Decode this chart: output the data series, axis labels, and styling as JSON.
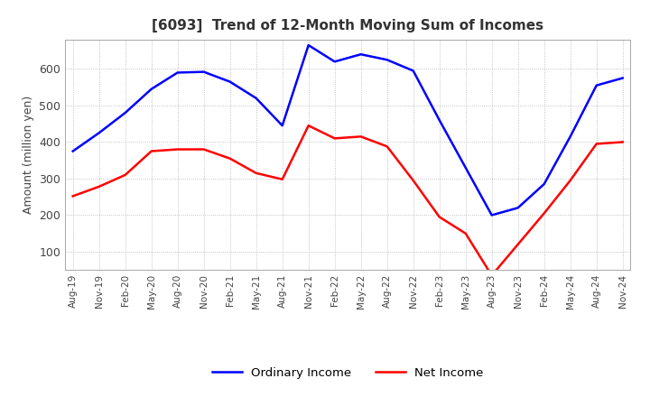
{
  "title": "[6093]  Trend of 12-Month Moving Sum of Incomes",
  "ylabel": "Amount (million yen)",
  "ylim": [
    50,
    680
  ],
  "yticks": [
    100,
    200,
    300,
    400,
    500,
    600
  ],
  "x_labels": [
    "Aug-19",
    "Nov-19",
    "Feb-20",
    "May-20",
    "Aug-20",
    "Nov-20",
    "Feb-21",
    "May-21",
    "Aug-21",
    "Nov-21",
    "Feb-22",
    "May-22",
    "Aug-22",
    "Nov-22",
    "Feb-23",
    "May-23",
    "Aug-23",
    "Nov-23",
    "Feb-24",
    "May-24",
    "Aug-24",
    "Nov-24"
  ],
  "ordinary_income": [
    375,
    425,
    480,
    545,
    590,
    592,
    565,
    520,
    445,
    665,
    620,
    640,
    625,
    595,
    460,
    330,
    200,
    220,
    285,
    415,
    555,
    575
  ],
  "net_income": [
    252,
    278,
    310,
    375,
    380,
    380,
    355,
    315,
    298,
    445,
    410,
    415,
    388,
    295,
    195,
    150,
    35,
    120,
    205,
    295,
    395,
    400
  ],
  "ordinary_color": "#0000ff",
  "net_color": "#ff0000",
  "grid_color": "#aaaaaa",
  "background_color": "#ffffff",
  "title_fontsize": 11,
  "title_color": "#333333",
  "legend_labels": [
    "Ordinary Income",
    "Net Income"
  ]
}
